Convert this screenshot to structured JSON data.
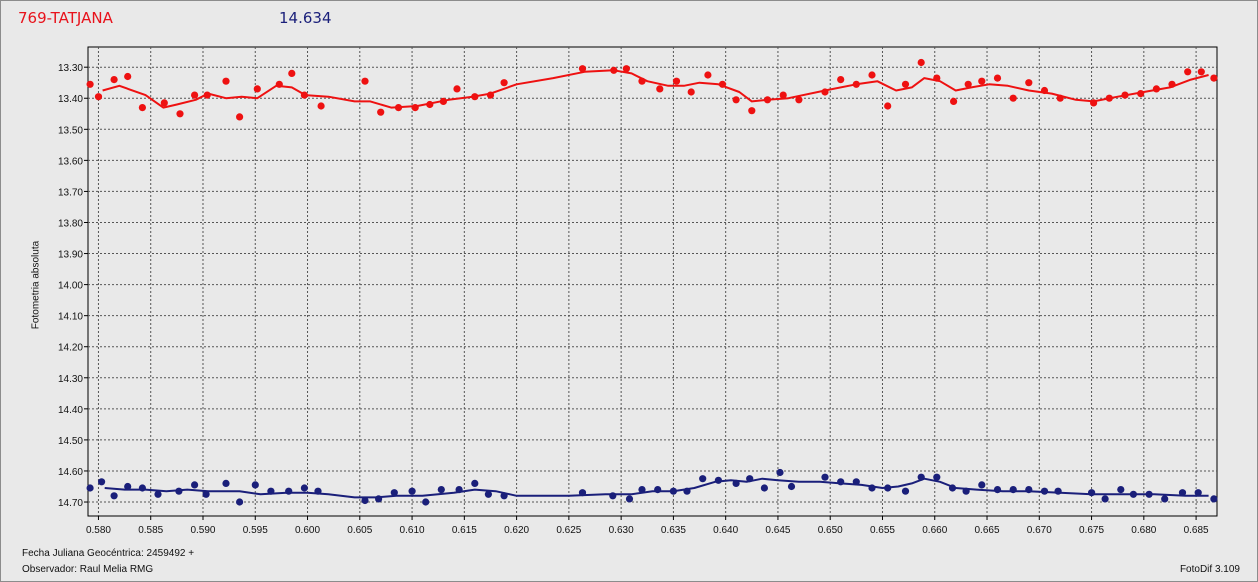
{
  "header": {
    "object_name": "769-TATJANA",
    "magnitude": "14.634"
  },
  "footer": {
    "jd_label": "Fecha Juliana Geocéntrica: 2459492 +",
    "observer_label": "Observador: Raul Melia RMG",
    "software_label": "FotoDif 3.109"
  },
  "chart_data": {
    "type": "scatter",
    "xlabel": "",
    "ylabel": "Fotometria absoluta",
    "xlim": [
      0.579,
      0.687
    ],
    "ylim": [
      13.235,
      14.745
    ],
    "y_inverted": true,
    "grid": true,
    "x_ticks": [
      "0.580",
      "0.585",
      "0.590",
      "0.595",
      "0.600",
      "0.605",
      "0.610",
      "0.615",
      "0.620",
      "0.625",
      "0.630",
      "0.635",
      "0.640",
      "0.645",
      "0.650",
      "0.655",
      "0.660",
      "0.665",
      "0.670",
      "0.675",
      "0.680",
      "0.685"
    ],
    "y_ticks": [
      "13.30",
      "13.40",
      "13.50",
      "13.60",
      "13.70",
      "13.80",
      "13.90",
      "14.00",
      "14.10",
      "14.20",
      "14.30",
      "14.40",
      "14.50",
      "14.60",
      "14.70"
    ],
    "series": [
      {
        "color": "#ee1111",
        "points": [
          [
            0.5792,
            13.355
          ],
          [
            0.58,
            13.395
          ],
          [
            0.5815,
            13.34
          ],
          [
            0.5828,
            13.33
          ],
          [
            0.5842,
            13.43
          ],
          [
            0.5863,
            13.415
          ],
          [
            0.5878,
            13.45
          ],
          [
            0.5892,
            13.39
          ],
          [
            0.5904,
            13.39
          ],
          [
            0.5922,
            13.345
          ],
          [
            0.5935,
            13.46
          ],
          [
            0.5952,
            13.37
          ],
          [
            0.5973,
            13.355
          ],
          [
            0.5985,
            13.32
          ],
          [
            0.5997,
            13.39
          ],
          [
            0.6013,
            13.425
          ],
          [
            0.6055,
            13.345
          ],
          [
            0.607,
            13.445
          ],
          [
            0.6087,
            13.43
          ],
          [
            0.6103,
            13.43
          ],
          [
            0.6117,
            13.42
          ],
          [
            0.613,
            13.41
          ],
          [
            0.6143,
            13.37
          ],
          [
            0.616,
            13.395
          ],
          [
            0.6175,
            13.39
          ],
          [
            0.6188,
            13.35
          ],
          [
            0.6263,
            13.305
          ],
          [
            0.6293,
            13.31
          ],
          [
            0.6305,
            13.305
          ],
          [
            0.632,
            13.345
          ],
          [
            0.6337,
            13.37
          ],
          [
            0.6353,
            13.345
          ],
          [
            0.6367,
            13.38
          ],
          [
            0.6383,
            13.325
          ],
          [
            0.6397,
            13.355
          ],
          [
            0.641,
            13.405
          ],
          [
            0.6425,
            13.44
          ],
          [
            0.644,
            13.405
          ],
          [
            0.6455,
            13.39
          ],
          [
            0.647,
            13.405
          ],
          [
            0.6495,
            13.38
          ],
          [
            0.651,
            13.34
          ],
          [
            0.6525,
            13.355
          ],
          [
            0.654,
            13.325
          ],
          [
            0.6555,
            13.425
          ],
          [
            0.6572,
            13.355
          ],
          [
            0.6587,
            13.285
          ],
          [
            0.6602,
            13.335
          ],
          [
            0.6618,
            13.41
          ],
          [
            0.6632,
            13.355
          ],
          [
            0.6645,
            13.345
          ],
          [
            0.666,
            13.335
          ],
          [
            0.6675,
            13.4
          ],
          [
            0.669,
            13.35
          ],
          [
            0.6705,
            13.375
          ],
          [
            0.672,
            13.4
          ],
          [
            0.6752,
            13.415
          ],
          [
            0.6767,
            13.4
          ],
          [
            0.6782,
            13.39
          ],
          [
            0.6797,
            13.385
          ],
          [
            0.6812,
            13.37
          ],
          [
            0.6827,
            13.355
          ],
          [
            0.6842,
            13.315
          ],
          [
            0.6855,
            13.315
          ],
          [
            0.6867,
            13.335
          ]
        ],
        "trend": [
          [
            0.5804,
            13.375
          ],
          [
            0.582,
            13.36
          ],
          [
            0.5845,
            13.39
          ],
          [
            0.5862,
            13.43
          ],
          [
            0.5875,
            13.42
          ],
          [
            0.5893,
            13.405
          ],
          [
            0.5905,
            13.385
          ],
          [
            0.5922,
            13.4
          ],
          [
            0.5937,
            13.395
          ],
          [
            0.5952,
            13.4
          ],
          [
            0.597,
            13.36
          ],
          [
            0.5985,
            13.365
          ],
          [
            0.5998,
            13.39
          ],
          [
            0.602,
            13.395
          ],
          [
            0.6045,
            13.41
          ],
          [
            0.606,
            13.41
          ],
          [
            0.608,
            13.43
          ],
          [
            0.6105,
            13.425
          ],
          [
            0.6135,
            13.405
          ],
          [
            0.6158,
            13.395
          ],
          [
            0.6175,
            13.385
          ],
          [
            0.62,
            13.355
          ],
          [
            0.6235,
            13.335
          ],
          [
            0.6265,
            13.315
          ],
          [
            0.6293,
            13.31
          ],
          [
            0.631,
            13.32
          ],
          [
            0.6325,
            13.345
          ],
          [
            0.6345,
            13.36
          ],
          [
            0.636,
            13.36
          ],
          [
            0.6375,
            13.35
          ],
          [
            0.6393,
            13.355
          ],
          [
            0.6413,
            13.38
          ],
          [
            0.6425,
            13.41
          ],
          [
            0.644,
            13.405
          ],
          [
            0.646,
            13.4
          ],
          [
            0.6495,
            13.375
          ],
          [
            0.6525,
            13.355
          ],
          [
            0.6545,
            13.345
          ],
          [
            0.6563,
            13.375
          ],
          [
            0.6578,
            13.365
          ],
          [
            0.659,
            13.335
          ],
          [
            0.6605,
            13.345
          ],
          [
            0.662,
            13.375
          ],
          [
            0.6635,
            13.365
          ],
          [
            0.6652,
            13.355
          ],
          [
            0.667,
            13.36
          ],
          [
            0.669,
            13.375
          ],
          [
            0.6712,
            13.385
          ],
          [
            0.6735,
            13.405
          ],
          [
            0.6752,
            13.41
          ],
          [
            0.6775,
            13.395
          ],
          [
            0.68,
            13.38
          ],
          [
            0.6825,
            13.365
          ],
          [
            0.6845,
            13.34
          ],
          [
            0.6862,
            13.325
          ]
        ]
      },
      {
        "color": "#1a1f7a",
        "points": [
          [
            0.5792,
            14.655
          ],
          [
            0.5803,
            14.635
          ],
          [
            0.5815,
            14.68
          ],
          [
            0.5828,
            14.65
          ],
          [
            0.5842,
            14.655
          ],
          [
            0.5857,
            14.675
          ],
          [
            0.5877,
            14.665
          ],
          [
            0.5892,
            14.645
          ],
          [
            0.5903,
            14.675
          ],
          [
            0.5922,
            14.64
          ],
          [
            0.5935,
            14.7
          ],
          [
            0.595,
            14.645
          ],
          [
            0.5965,
            14.665
          ],
          [
            0.5982,
            14.665
          ],
          [
            0.5997,
            14.655
          ],
          [
            0.601,
            14.665
          ],
          [
            0.6055,
            14.695
          ],
          [
            0.6068,
            14.69
          ],
          [
            0.6083,
            14.67
          ],
          [
            0.61,
            14.665
          ],
          [
            0.6113,
            14.7
          ],
          [
            0.6128,
            14.66
          ],
          [
            0.6145,
            14.66
          ],
          [
            0.616,
            14.64
          ],
          [
            0.6173,
            14.675
          ],
          [
            0.6188,
            14.68
          ],
          [
            0.6263,
            14.67
          ],
          [
            0.6292,
            14.68
          ],
          [
            0.6308,
            14.69
          ],
          [
            0.632,
            14.66
          ],
          [
            0.6335,
            14.66
          ],
          [
            0.635,
            14.665
          ],
          [
            0.6363,
            14.665
          ],
          [
            0.6378,
            14.625
          ],
          [
            0.6393,
            14.63
          ],
          [
            0.641,
            14.64
          ],
          [
            0.6423,
            14.625
          ],
          [
            0.6437,
            14.655
          ],
          [
            0.6452,
            14.605
          ],
          [
            0.6463,
            14.65
          ],
          [
            0.6495,
            14.62
          ],
          [
            0.651,
            14.635
          ],
          [
            0.6525,
            14.635
          ],
          [
            0.654,
            14.655
          ],
          [
            0.6555,
            14.655
          ],
          [
            0.6572,
            14.665
          ],
          [
            0.6587,
            14.62
          ],
          [
            0.6602,
            14.62
          ],
          [
            0.6617,
            14.655
          ],
          [
            0.663,
            14.665
          ],
          [
            0.6645,
            14.645
          ],
          [
            0.666,
            14.66
          ],
          [
            0.6675,
            14.66
          ],
          [
            0.669,
            14.66
          ],
          [
            0.6705,
            14.665
          ],
          [
            0.6718,
            14.665
          ],
          [
            0.675,
            14.67
          ],
          [
            0.6763,
            14.69
          ],
          [
            0.6778,
            14.66
          ],
          [
            0.679,
            14.675
          ],
          [
            0.6805,
            14.675
          ],
          [
            0.682,
            14.69
          ],
          [
            0.6837,
            14.67
          ],
          [
            0.6852,
            14.67
          ],
          [
            0.6867,
            14.69
          ]
        ],
        "trend": [
          [
            0.5806,
            14.655
          ],
          [
            0.5825,
            14.66
          ],
          [
            0.5845,
            14.66
          ],
          [
            0.5865,
            14.665
          ],
          [
            0.5885,
            14.66
          ],
          [
            0.5905,
            14.665
          ],
          [
            0.592,
            14.665
          ],
          [
            0.5935,
            14.665
          ],
          [
            0.5955,
            14.675
          ],
          [
            0.598,
            14.67
          ],
          [
            0.6,
            14.67
          ],
          [
            0.602,
            14.675
          ],
          [
            0.6045,
            14.685
          ],
          [
            0.6065,
            14.685
          ],
          [
            0.6085,
            14.68
          ],
          [
            0.611,
            14.68
          ],
          [
            0.614,
            14.67
          ],
          [
            0.616,
            14.66
          ],
          [
            0.618,
            14.665
          ],
          [
            0.62,
            14.68
          ],
          [
            0.625,
            14.68
          ],
          [
            0.6285,
            14.675
          ],
          [
            0.631,
            14.675
          ],
          [
            0.633,
            14.665
          ],
          [
            0.635,
            14.665
          ],
          [
            0.637,
            14.655
          ],
          [
            0.639,
            14.635
          ],
          [
            0.6405,
            14.63
          ],
          [
            0.642,
            14.635
          ],
          [
            0.6435,
            14.625
          ],
          [
            0.645,
            14.63
          ],
          [
            0.647,
            14.635
          ],
          [
            0.649,
            14.635
          ],
          [
            0.651,
            14.64
          ],
          [
            0.653,
            14.645
          ],
          [
            0.655,
            14.655
          ],
          [
            0.6565,
            14.65
          ],
          [
            0.6578,
            14.64
          ],
          [
            0.659,
            14.625
          ],
          [
            0.6605,
            14.635
          ],
          [
            0.662,
            14.655
          ],
          [
            0.664,
            14.66
          ],
          [
            0.6665,
            14.665
          ],
          [
            0.669,
            14.665
          ],
          [
            0.672,
            14.67
          ],
          [
            0.675,
            14.675
          ],
          [
            0.678,
            14.675
          ],
          [
            0.681,
            14.675
          ],
          [
            0.684,
            14.68
          ],
          [
            0.6862,
            14.68
          ]
        ]
      }
    ]
  }
}
